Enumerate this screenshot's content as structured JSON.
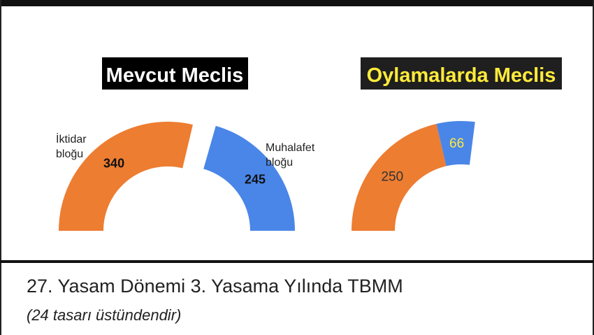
{
  "chart_data": [
    {
      "type": "pie",
      "variant": "half-donut",
      "title": "Mevcut Meclis",
      "title_bg": "#000000",
      "title_color": "#ffffff",
      "slices": [
        {
          "label": "İktidar\nbloğu",
          "value": 340,
          "value_label": "340",
          "color": "#ED7D31",
          "value_color": "#111111"
        },
        {
          "label": "Muhalafet\nbloğu",
          "value": 245,
          "value_label": "245",
          "color": "#4A86E8",
          "value_color": "#111111"
        }
      ],
      "exploded": true
    },
    {
      "type": "pie",
      "variant": "half-donut",
      "title": "Oylamalarda Meclis",
      "title_bg": "#1f1f1f",
      "title_color": "#FFEB3B",
      "slices": [
        {
          "label": "",
          "value": 250,
          "value_label": "250",
          "color": "#ED7D31",
          "value_color": "#333333"
        },
        {
          "label": "",
          "value": 66,
          "value_label": "66",
          "color": "#4A86E8",
          "value_color": "#FFEB3B"
        }
      ],
      "exploded": false,
      "total_reference": 585
    }
  ],
  "caption": {
    "title": "27. Yasam Dönemi 3. Yasama Yılında TBMM",
    "subtitle": "(24 tasarı üstündendir)"
  }
}
